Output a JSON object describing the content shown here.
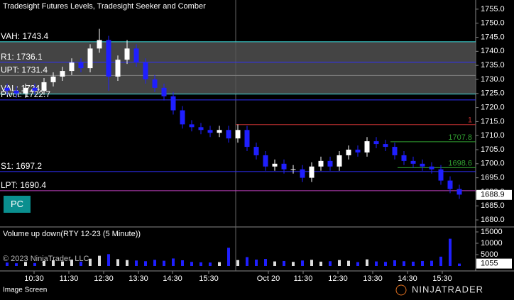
{
  "chart_data": {
    "type": "candlestick",
    "title": "Tradesight Futures Levels, Tradesight Seeker and Comber",
    "up_color": "#ffffff",
    "down_color": "#1f1fff",
    "ohlc": [
      [
        1727,
        1728.5,
        1724.5,
        1726
      ],
      [
        1726,
        1727.5,
        1723.5,
        1725
      ],
      [
        1725,
        1728.5,
        1723.5,
        1727
      ],
      [
        1727,
        1728.5,
        1724.5,
        1726
      ],
      [
        1726,
        1730.5,
        1724.5,
        1729
      ],
      [
        1729,
        1732.5,
        1727.5,
        1731
      ],
      [
        1731,
        1734.5,
        1729.5,
        1733
      ],
      [
        1733,
        1737.5,
        1731.5,
        1736
      ],
      [
        1736,
        1737.5,
        1732.5,
        1734
      ],
      [
        1734,
        1742.5,
        1732.5,
        1741
      ],
      [
        1741,
        1748,
        1739.5,
        1744
      ],
      [
        1744,
        1745.5,
        1726,
        1731
      ],
      [
        1731,
        1738.5,
        1729.5,
        1737
      ],
      [
        1737,
        1744,
        1735.5,
        1741
      ],
      [
        1741,
        1742.5,
        1734.5,
        1736
      ],
      [
        1736,
        1737.5,
        1728.5,
        1730
      ],
      [
        1730,
        1731.5,
        1725.5,
        1727
      ],
      [
        1727,
        1728.5,
        1722.5,
        1724
      ],
      [
        1724,
        1725.5,
        1717.5,
        1719
      ],
      [
        1719,
        1720.5,
        1712.5,
        1714
      ],
      [
        1714,
        1715.5,
        1711.5,
        1713
      ],
      [
        1713,
        1714.5,
        1710.5,
        1712
      ],
      [
        1712,
        1713.5,
        1709.5,
        1711
      ],
      [
        1711,
        1713.5,
        1709.5,
        1712
      ],
      [
        1712,
        1713.5,
        1707.5,
        1709
      ],
      [
        1709,
        1714,
        1707.5,
        1712
      ],
      [
        1712,
        1713.5,
        1704.5,
        1706
      ],
      [
        1706,
        1707.5,
        1701.5,
        1703
      ],
      [
        1703,
        1704.5,
        1697.5,
        1699
      ],
      [
        1699,
        1701.5,
        1697.5,
        1700
      ],
      [
        1700,
        1701.5,
        1696.5,
        1698
      ],
      [
        1698,
        1699.5,
        1696.5,
        1698
      ],
      [
        1698,
        1699.5,
        1693.5,
        1695
      ],
      [
        1695,
        1700.5,
        1693.5,
        1699
      ],
      [
        1699,
        1702.5,
        1697.5,
        1701
      ],
      [
        1701,
        1702.5,
        1697.5,
        1699
      ],
      [
        1699,
        1704.5,
        1697.5,
        1703
      ],
      [
        1703,
        1706.5,
        1701.5,
        1705
      ],
      [
        1705,
        1706.5,
        1702.5,
        1704
      ],
      [
        1704,
        1709.5,
        1702.5,
        1708
      ],
      [
        1708,
        1709.5,
        1705.5,
        1707
      ],
      [
        1707,
        1708.5,
        1704.5,
        1706
      ],
      [
        1706,
        1707.5,
        1701.5,
        1703
      ],
      [
        1703,
        1704.5,
        1699.5,
        1701
      ],
      [
        1701,
        1702.5,
        1698.5,
        1700
      ],
      [
        1700,
        1701.5,
        1697.5,
        1699
      ],
      [
        1699,
        1700.5,
        1696.5,
        1698
      ],
      [
        1698,
        1699.5,
        1692.5,
        1694
      ],
      [
        1694,
        1695.5,
        1689.5,
        1691
      ],
      [
        1691,
        1692.5,
        1687.5,
        1689
      ]
    ],
    "ylim": [
      1678.0,
      1757.5
    ],
    "yticks": [
      {
        "value": 1755,
        "label": "1755.0"
      },
      {
        "value": 1750,
        "label": "1750.0"
      },
      {
        "value": 1745,
        "label": "1745.0"
      },
      {
        "value": 1740,
        "label": "1740.0"
      },
      {
        "value": 1735,
        "label": "1735.0"
      },
      {
        "value": 1730,
        "label": "1730.0"
      },
      {
        "value": 1725,
        "label": "1725.0"
      },
      {
        "value": 1720,
        "label": "1720.0"
      },
      {
        "value": 1715,
        "label": "1715.0"
      },
      {
        "value": 1710,
        "label": "1710.0"
      },
      {
        "value": 1705,
        "label": "1705.0"
      },
      {
        "value": 1700,
        "label": "1700.0"
      },
      {
        "value": 1695,
        "label": "1695.0"
      },
      {
        "value": 1690,
        "label": "1690.0"
      },
      {
        "value": 1685,
        "label": "1685.0"
      },
      {
        "value": 1680,
        "label": "1680.0"
      }
    ],
    "last_price": 1688.9,
    "levels": [
      {
        "label": "VAH: 1743.4",
        "value": 1743.4,
        "color": "#40e0e0"
      },
      {
        "label": "R1: 1736.1",
        "value": 1736.1,
        "color": "#3030ff"
      },
      {
        "label": "UPT: 1731.4",
        "value": 1731.4,
        "color": "#808080"
      },
      {
        "label": "VAL: 1724.8",
        "value": 1724.8,
        "color": "#40e0e0"
      },
      {
        "label": "Pivot: 1722.7",
        "value": 1722.7,
        "color": "#3030ff"
      },
      {
        "label": "S1: 1697.2",
        "value": 1697.2,
        "color": "#3030ff"
      },
      {
        "label": "LPT: 1690.4",
        "value": 1690.4,
        "color": "#c040c0"
      }
    ],
    "seeker_levels": [
      {
        "label": "1",
        "value": 1713.9,
        "color": "#c03030"
      },
      {
        "label": "1707.8",
        "value": 1707.8,
        "color": "#30a030"
      },
      {
        "label": "1698.6",
        "value": 1698.6,
        "color": "#30a030"
      }
    ],
    "volume_title": "Volume up down(RTY 12-23 (5 Minute))",
    "volume": [
      1500,
      1200,
      1800,
      1300,
      2200,
      2500,
      2000,
      2800,
      1900,
      3200,
      4500,
      5200,
      3000,
      2600,
      2400,
      2100,
      2700,
      2300,
      3300,
      2500,
      1800,
      1600,
      1500,
      1700,
      8000,
      2600,
      3900,
      2800,
      3100,
      2000,
      2200,
      1800,
      2400,
      2700,
      1900,
      2100,
      2600,
      2300,
      1700,
      2900,
      2000,
      1800,
      2500,
      2100,
      1900,
      2200,
      2300,
      4100,
      12000,
      1055
    ],
    "volume_ylim": [
      0,
      15000
    ],
    "volume_yticks": [
      15000,
      10000,
      5000
    ],
    "volume_last_label": "1055",
    "x_labels": [
      "10:30",
      "11:30",
      "12:30",
      "13:30",
      "14:30",
      "15:30",
      "Oct 20",
      "11:30",
      "12:30",
      "13:30",
      "14:30",
      "15:30"
    ],
    "copyright": "© 2023 NinjaTrader, LLC",
    "footer": "Image Screen",
    "logo": "NINJATRADER",
    "button": "PC"
  }
}
